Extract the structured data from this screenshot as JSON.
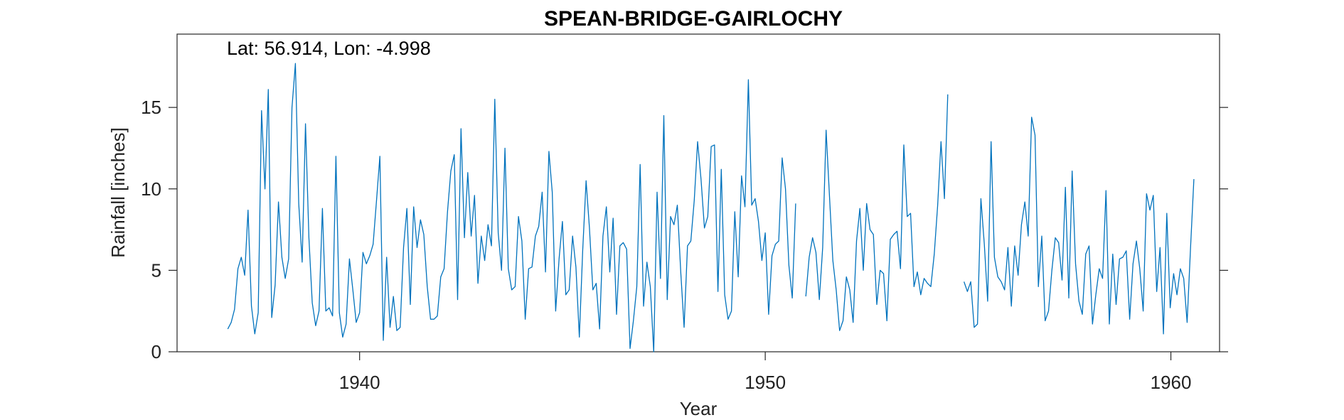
{
  "chart_data": {
    "type": "line",
    "title": "SPEAN-BRIDGE-GAIRLOCHY",
    "xlabel": "Year",
    "ylabel": "Rainfall [inches]",
    "annotation": "Lat: 56.914, Lon: -4.998",
    "xlim": [
      1935.5,
      1961.2
    ],
    "ylim": [
      0,
      19.5
    ],
    "xticks": [
      1940,
      1950,
      1960
    ],
    "yticks": [
      0,
      5,
      10,
      15
    ],
    "grid": false,
    "line_color": "#0072BD",
    "series": [
      {
        "start_year": 1936.75,
        "step": 0.0833333,
        "values": [
          1.4,
          1.8,
          2.6,
          5.1,
          5.8,
          4.7,
          8.7,
          2.8,
          1.1,
          2.4,
          14.8,
          10.0,
          16.1,
          2.1,
          4.1,
          9.2,
          5.8,
          4.5,
          5.7,
          15.0,
          17.7,
          9.1,
          5.5,
          14.0,
          7.0,
          3.0,
          1.6,
          2.5,
          8.8,
          2.5,
          2.7,
          2.2,
          12.0,
          2.4,
          0.9,
          1.7,
          5.7,
          3.8,
          1.8,
          2.4,
          6.1,
          5.4,
          5.9,
          6.6,
          9.3,
          12.0,
          0.7,
          5.8,
          1.5,
          3.4,
          1.3,
          1.5,
          6.4,
          8.8,
          2.9,
          8.9,
          6.4,
          8.1,
          7.2,
          4.0,
          2.0,
          2.0,
          2.2,
          4.6,
          5.1,
          8.6,
          11.1,
          12.1,
          3.2,
          13.7,
          7.0,
          11.0,
          7.1,
          9.6,
          4.2,
          7.1,
          5.6,
          7.8,
          6.5,
          15.5,
          7.3,
          5.0,
          12.5,
          5.1,
          3.8,
          4.0,
          8.3,
          6.8,
          2.0,
          5.1,
          5.2,
          7.1,
          7.7,
          9.8,
          4.9,
          12.3,
          9.8,
          2.5,
          5.7,
          8.0,
          3.5,
          3.8,
          7.1,
          5.2,
          0.9,
          6.2,
          10.5,
          7.6,
          3.8,
          4.2,
          1.4,
          7.1,
          8.9,
          4.9,
          8.2,
          2.3,
          6.5,
          6.7,
          6.3,
          0.2,
          1.9,
          4.0,
          11.5,
          2.8,
          5.5,
          4.0,
          0.0,
          9.8,
          4.5,
          14.5,
          3.2,
          8.3,
          7.8,
          9.0,
          4.9,
          1.5,
          6.5,
          6.8,
          9.3,
          12.9,
          10.6,
          7.6,
          8.3,
          12.6,
          12.7,
          3.7,
          11.2,
          3.5,
          2.0,
          2.5,
          8.6,
          4.6,
          10.8,
          8.9,
          16.7,
          9.0,
          9.4,
          8.0,
          5.6,
          7.3,
          2.3,
          5.9,
          6.6,
          6.8,
          11.9,
          10.0,
          5.3,
          3.3,
          9.1
        ]
      },
      {
        "start_year": 1951.0,
        "step": 0.0833333,
        "values": [
          3.4,
          5.8,
          7.0,
          6.1,
          3.2,
          6.4,
          13.6,
          9.6,
          5.6,
          3.8,
          1.3,
          1.9,
          4.6,
          3.8,
          1.8,
          6.8,
          8.8,
          5.0,
          9.1,
          7.5,
          7.2,
          2.9,
          5.0,
          4.8,
          1.9,
          6.9,
          7.2,
          7.4,
          5.1,
          12.7,
          8.3,
          8.5,
          4.0,
          4.9,
          3.5,
          4.5,
          4.2,
          4.0,
          6.0,
          9.0,
          12.9,
          9.4,
          15.8
        ]
      },
      {
        "start_year": 1954.9,
        "step": 0.0833333,
        "values": [
          4.3,
          3.7,
          4.3,
          1.5,
          1.7,
          9.4,
          6.6,
          3.1,
          12.9,
          5.8,
          4.6,
          4.3,
          3.8,
          6.4,
          2.8,
          6.5,
          4.7,
          7.8,
          9.2,
          7.1,
          14.4,
          13.3,
          4.0,
          7.1,
          1.9,
          2.5,
          5.0,
          7.0,
          6.7,
          4.4,
          10.1,
          3.3,
          11.1,
          5.4,
          3.1,
          2.3,
          6.0,
          6.5,
          1.7,
          3.5,
          5.1,
          4.5,
          9.9,
          1.7,
          6.0,
          2.9,
          5.7,
          5.8,
          6.2,
          2.0,
          5.4,
          6.8,
          5.1,
          2.5,
          9.7,
          8.7,
          9.6,
          3.7,
          6.4,
          1.1,
          8.5,
          2.7,
          4.8,
          3.5,
          5.1,
          4.5,
          1.8,
          6.3,
          10.6
        ]
      }
    ]
  }
}
